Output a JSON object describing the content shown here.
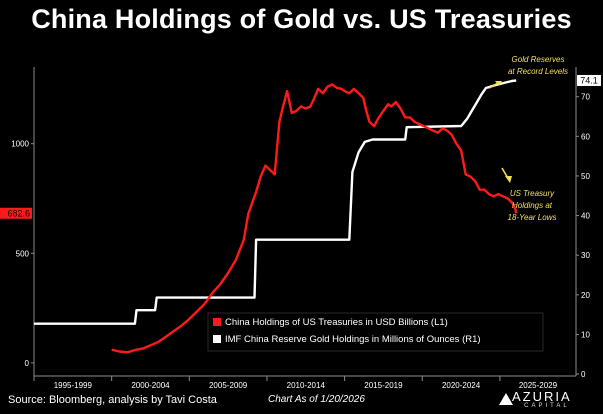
{
  "title": "China Holdings of Gold vs. US Treasuries",
  "footer": {
    "source": "Source: Bloomberg, analysis by Tavi Costa",
    "date": "Chart As of 1/20/2026",
    "logo_name": "AZURIA",
    "logo_sub": "CAPITAL"
  },
  "colors": {
    "treasuries": "#ff1a1a",
    "gold": "#ffffff",
    "annotation": "#f2e05a",
    "background": "#000000"
  },
  "chart_data": {
    "type": "line",
    "title": "China Holdings of Gold vs. US Treasuries",
    "x_categories": [
      "1995-1999",
      "2000-2004",
      "2005-2009",
      "2010-2014",
      "2015-2019",
      "2020-2024",
      "2025-2029"
    ],
    "x_range": [
      1995,
      2029.9
    ],
    "left_axis": {
      "ticks": [
        0,
        500,
        1000
      ],
      "range": [
        -60,
        1350
      ],
      "current_value_label": "682.6",
      "current_value": 682.6
    },
    "right_axis": {
      "ticks": [
        0,
        10,
        20,
        30,
        40,
        50,
        60,
        70
      ],
      "range": [
        -0.5,
        77.5
      ],
      "current_value_label": "74.1",
      "current_value": 74.1
    },
    "series": [
      {
        "name": "China Holdings of US Treasuries in USD Billions (L1)",
        "axis": "left",
        "color": "#ff1a1a",
        "points": [
          [
            2000.0,
            60
          ],
          [
            2000.5,
            52
          ],
          [
            2001.0,
            48
          ],
          [
            2001.5,
            58
          ],
          [
            2002.0,
            65
          ],
          [
            2002.5,
            80
          ],
          [
            2003.0,
            95
          ],
          [
            2003.5,
            120
          ],
          [
            2004.0,
            145
          ],
          [
            2004.5,
            170
          ],
          [
            2005.0,
            200
          ],
          [
            2005.5,
            235
          ],
          [
            2006.0,
            270
          ],
          [
            2006.5,
            320
          ],
          [
            2007.0,
            360
          ],
          [
            2007.5,
            410
          ],
          [
            2008.0,
            470
          ],
          [
            2008.5,
            560
          ],
          [
            2008.8,
            680
          ],
          [
            2009.0,
            720
          ],
          [
            2009.3,
            780
          ],
          [
            2009.6,
            850
          ],
          [
            2009.9,
            900
          ],
          [
            2010.2,
            880
          ],
          [
            2010.5,
            860
          ],
          [
            2010.8,
            1100
          ],
          [
            2011.0,
            1160
          ],
          [
            2011.3,
            1240
          ],
          [
            2011.6,
            1140
          ],
          [
            2011.9,
            1150
          ],
          [
            2012.2,
            1170
          ],
          [
            2012.5,
            1160
          ],
          [
            2012.8,
            1170
          ],
          [
            2013.0,
            1200
          ],
          [
            2013.3,
            1250
          ],
          [
            2013.6,
            1230
          ],
          [
            2013.9,
            1260
          ],
          [
            2014.2,
            1270
          ],
          [
            2014.5,
            1255
          ],
          [
            2014.8,
            1250
          ],
          [
            2015.0,
            1240
          ],
          [
            2015.3,
            1230
          ],
          [
            2015.6,
            1250
          ],
          [
            2015.9,
            1230
          ],
          [
            2016.2,
            1210
          ],
          [
            2016.4,
            1150
          ],
          [
            2016.6,
            1100
          ],
          [
            2016.9,
            1080
          ],
          [
            2017.2,
            1120
          ],
          [
            2017.5,
            1150
          ],
          [
            2017.8,
            1180
          ],
          [
            2018.0,
            1170
          ],
          [
            2018.3,
            1190
          ],
          [
            2018.6,
            1160
          ],
          [
            2018.9,
            1120
          ],
          [
            2019.2,
            1120
          ],
          [
            2019.5,
            1100
          ],
          [
            2019.8,
            1090
          ],
          [
            2020.1,
            1080
          ],
          [
            2020.4,
            1070
          ],
          [
            2020.7,
            1060
          ],
          [
            2021.0,
            1050
          ],
          [
            2021.3,
            1070
          ],
          [
            2021.6,
            1060
          ],
          [
            2021.9,
            1040
          ],
          [
            2022.2,
            1000
          ],
          [
            2022.5,
            970
          ],
          [
            2022.8,
            860
          ],
          [
            2023.1,
            850
          ],
          [
            2023.4,
            830
          ],
          [
            2023.7,
            790
          ],
          [
            2024.0,
            790
          ],
          [
            2024.3,
            770
          ],
          [
            2024.6,
            760
          ],
          [
            2024.9,
            770
          ],
          [
            2025.2,
            760
          ],
          [
            2025.5,
            750
          ],
          [
            2025.8,
            730
          ],
          [
            2026.0,
            700
          ],
          [
            2026.05,
            682.6
          ]
        ]
      },
      {
        "name": "IMF China Reserve Gold Holdings in Millions of Ounces (R1)",
        "axis": "right",
        "color": "#ffffff",
        "points": [
          [
            1995.0,
            12.7
          ],
          [
            2001.5,
            12.7
          ],
          [
            2001.6,
            16.1
          ],
          [
            2002.8,
            16.1
          ],
          [
            2002.9,
            19.3
          ],
          [
            2009.2,
            19.3
          ],
          [
            2009.3,
            33.9
          ],
          [
            2015.3,
            33.9
          ],
          [
            2015.5,
            51.0
          ],
          [
            2015.9,
            56.0
          ],
          [
            2016.3,
            58.6
          ],
          [
            2016.8,
            59.2
          ],
          [
            2018.9,
            59.2
          ],
          [
            2019.0,
            62.3
          ],
          [
            2022.5,
            62.6
          ],
          [
            2022.6,
            63.0
          ],
          [
            2022.9,
            64.5
          ],
          [
            2023.2,
            66.5
          ],
          [
            2023.5,
            68.5
          ],
          [
            2023.8,
            70.5
          ],
          [
            2024.1,
            72.2
          ],
          [
            2024.6,
            72.8
          ],
          [
            2025.0,
            73.2
          ],
          [
            2025.4,
            73.6
          ],
          [
            2025.8,
            74.0
          ],
          [
            2026.05,
            74.1
          ]
        ]
      }
    ],
    "annotations": [
      {
        "id": "gold",
        "text": [
          "Gold Reserves",
          "at Record Levels"
        ]
      },
      {
        "id": "treasury",
        "text": [
          "US Treasury",
          "Holdings at",
          "18-Year Lows"
        ]
      }
    ],
    "legend_placement": "bottom-right"
  }
}
